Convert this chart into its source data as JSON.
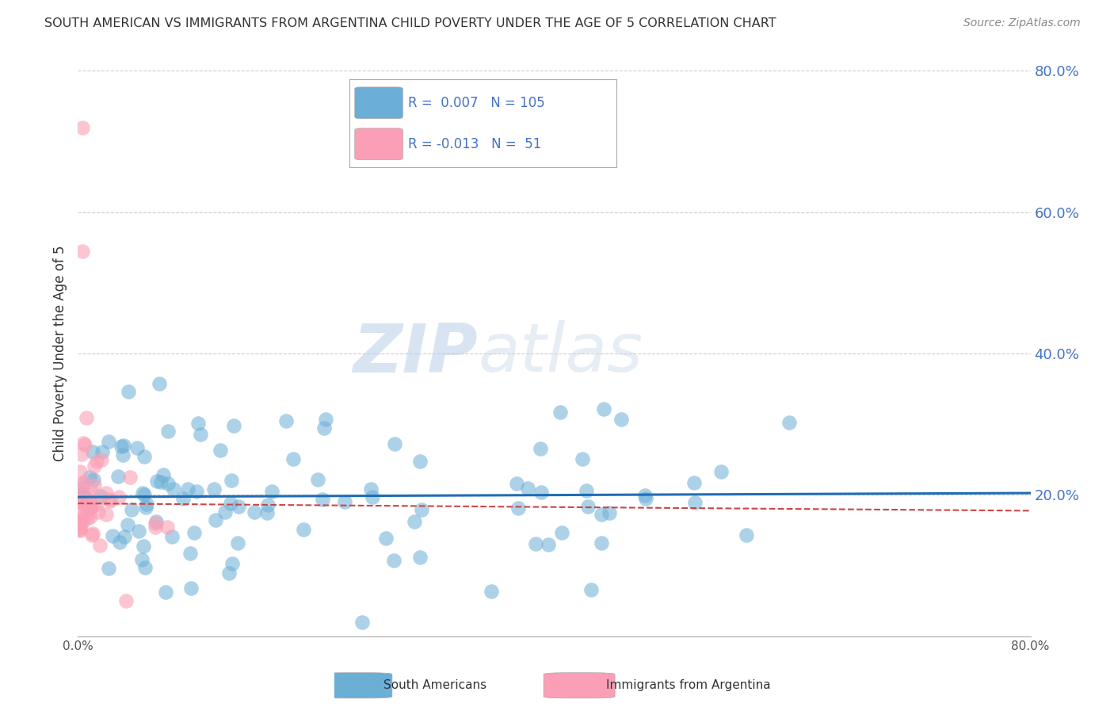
{
  "title": "SOUTH AMERICAN VS IMMIGRANTS FROM ARGENTINA CHILD POVERTY UNDER THE AGE OF 5 CORRELATION CHART",
  "source": "Source: ZipAtlas.com",
  "ylabel": "Child Poverty Under the Age of 5",
  "xlim": [
    0.0,
    0.8
  ],
  "ylim": [
    0.0,
    0.8
  ],
  "legend1_R": "0.007",
  "legend1_N": "105",
  "legend2_R": "-0.013",
  "legend2_N": "51",
  "blue_color": "#6baed6",
  "pink_color": "#fa9fb5",
  "trendline_blue": "#1f6eb5",
  "trendline_pink": "#cc4444",
  "watermark_ZIP": "ZIP",
  "watermark_atlas": "atlas",
  "bg_color": "#ffffff"
}
